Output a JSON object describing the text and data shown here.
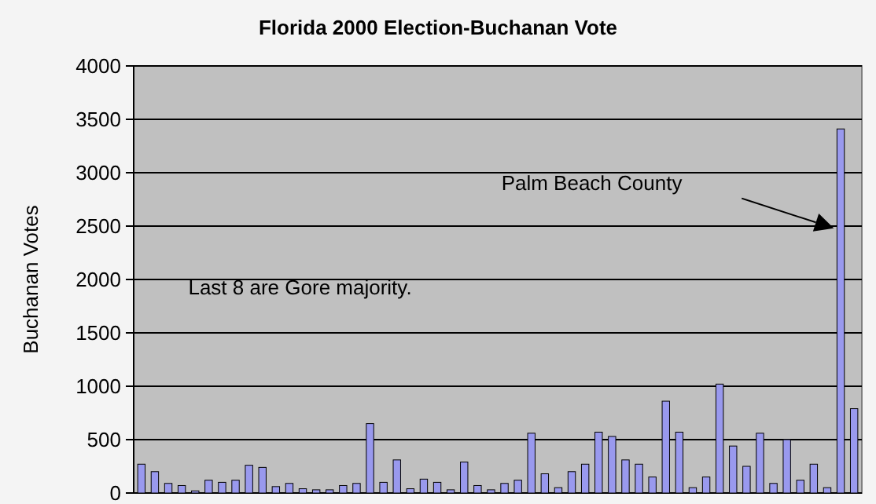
{
  "chart_data": {
    "type": "bar",
    "title": "Florida 2000 Election-Buchanan Vote",
    "ylabel": "Buchanan Votes",
    "categories": [
      null,
      null,
      null,
      null,
      null,
      null,
      null,
      null,
      null,
      null,
      null,
      null,
      null,
      null,
      null,
      null,
      null,
      null,
      null,
      null,
      null,
      null,
      null,
      null,
      null,
      null,
      null,
      null,
      null,
      null,
      null,
      null,
      null,
      null,
      null,
      null,
      null,
      null,
      null,
      null,
      null,
      null,
      null,
      null,
      null,
      null,
      null,
      null,
      null,
      null,
      null,
      null,
      null,
      null
    ],
    "values": [
      270,
      200,
      90,
      70,
      20,
      120,
      100,
      120,
      260,
      240,
      60,
      90,
      40,
      30,
      30,
      70,
      90,
      650,
      100,
      310,
      40,
      130,
      100,
      30,
      290,
      70,
      30,
      90,
      120,
      560,
      180,
      50,
      200,
      270,
      570,
      530,
      310,
      270,
      150,
      860,
      570,
      50,
      150,
      1020,
      440,
      250,
      560,
      90,
      500,
      120,
      270,
      50,
      3410,
      790
    ],
    "color": "#9999ee",
    "ylim": [
      0,
      4000
    ],
    "yticks": [
      0,
      500,
      1000,
      1500,
      2000,
      2500,
      3000,
      3500,
      4000
    ],
    "grid": "y",
    "annotations": [
      "Last 8 are Gore majority.",
      "Palm Beach County"
    ]
  }
}
